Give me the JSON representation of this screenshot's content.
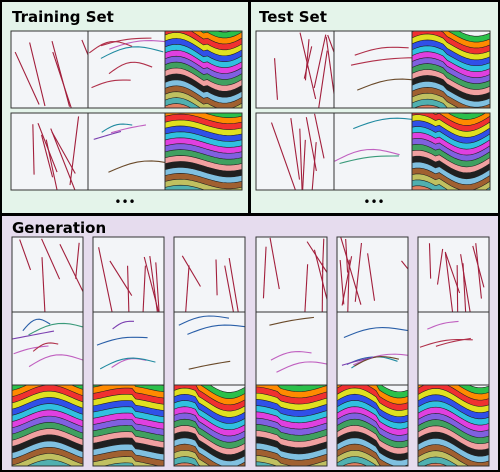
{
  "panels": [
    {
      "title": "Training Set",
      "more": "•••"
    },
    {
      "title": "Test Set",
      "more": "•••"
    },
    {
      "title": "Generation"
    }
  ]
}
